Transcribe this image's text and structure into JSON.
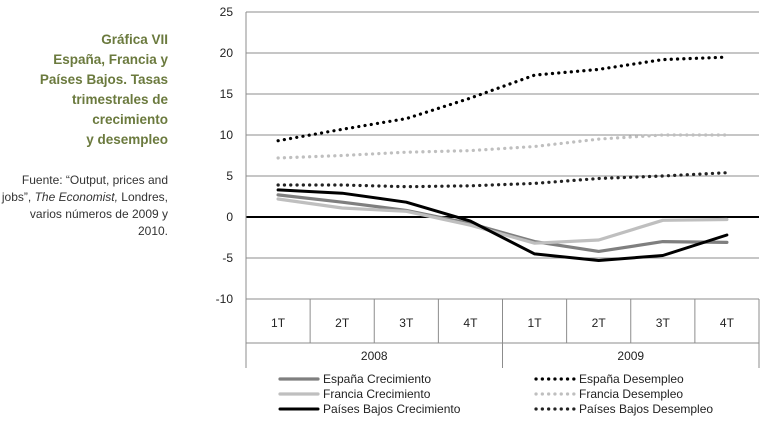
{
  "caption": {
    "title": "Gráfica VII\nEspaña, Francia y\nPaíses Bajos. Tasas\ntrimestrales de\ncrecimiento\ny desempleo",
    "source_prefix": "Fuente: “Output, prices and jobs”, ",
    "source_italic": "The Economist,",
    "source_suffix": " Londres, varios números de 2009 y 2010."
  },
  "chart_data": {
    "type": "line",
    "title": "",
    "xlabel": "",
    "ylabel": "",
    "ylim": [
      -10,
      25
    ],
    "yticks": [
      -10,
      -5,
      0,
      5,
      10,
      15,
      20,
      25
    ],
    "categories": [
      "1T",
      "2T",
      "3T",
      "4T",
      "1T",
      "2T",
      "3T",
      "4T"
    ],
    "groups": [
      {
        "label": "2008",
        "span": 4
      },
      {
        "label": "2009",
        "span": 4
      }
    ],
    "grid": "horizontal",
    "legend_position": "bottom",
    "series": [
      {
        "name": "España Crecimiento",
        "style": "solid",
        "color": "#7f7f7f",
        "values": [
          2.7,
          1.8,
          0.8,
          -0.8,
          -3.0,
          -4.2,
          -3.0,
          -3.1
        ]
      },
      {
        "name": "España Desempleo",
        "style": "dotted",
        "color": "#000000",
        "values": [
          9.3,
          10.7,
          12.0,
          14.5,
          17.3,
          18.0,
          19.2,
          19.5
        ]
      },
      {
        "name": "Francia Crecimiento",
        "style": "solid",
        "color": "#bfbfbf",
        "values": [
          2.2,
          1.1,
          0.7,
          -1.0,
          -3.2,
          -2.8,
          -0.4,
          -0.3
        ]
      },
      {
        "name": "Francia Desempleo",
        "style": "dotted",
        "color": "#bfbfbf",
        "values": [
          7.2,
          7.5,
          7.9,
          8.1,
          8.6,
          9.5,
          10.0,
          10.0
        ]
      },
      {
        "name": "Países Bajos Crecimiento",
        "style": "solid",
        "color": "#000000",
        "values": [
          3.3,
          2.9,
          1.8,
          -0.5,
          -4.5,
          -5.3,
          -4.7,
          -2.2
        ]
      },
      {
        "name": "Países Bajos Desempleo",
        "style": "dotted",
        "color": "#222222",
        "values": [
          3.9,
          3.9,
          3.7,
          3.8,
          4.1,
          4.7,
          5.0,
          5.4
        ]
      }
    ]
  }
}
